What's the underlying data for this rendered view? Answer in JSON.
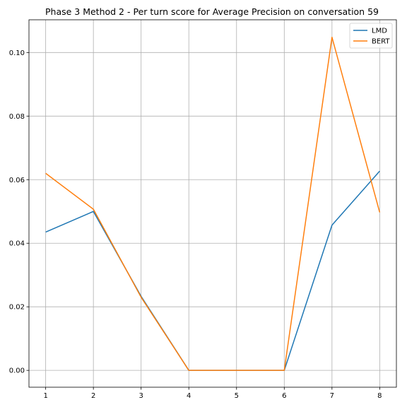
{
  "chart_data": {
    "type": "line",
    "title": "Phase 3 Method 2 - Per turn score for Average Precision on conversation 59",
    "xlabel": "",
    "ylabel": "",
    "x": [
      1,
      2,
      3,
      4,
      5,
      6,
      7,
      8
    ],
    "xlim": [
      0.65,
      8.35
    ],
    "ylim": [
      -0.0053,
      0.1103
    ],
    "x_ticks": [
      1,
      2,
      3,
      4,
      5,
      6,
      7,
      8
    ],
    "x_tick_labels": [
      "1",
      "2",
      "3",
      "4",
      "5",
      "6",
      "7",
      "8"
    ],
    "y_ticks": [
      0.0,
      0.02,
      0.04,
      0.06,
      0.08,
      0.1
    ],
    "y_tick_labels": [
      "0.00",
      "0.02",
      "0.04",
      "0.06",
      "0.08",
      "0.10"
    ],
    "grid": true,
    "legend_position": "top-right",
    "series": [
      {
        "name": "LMD",
        "color": "#1f77b4",
        "values": [
          0.0435,
          0.05,
          0.0233,
          0.0,
          0.0,
          0.0,
          0.0457,
          0.0627
        ]
      },
      {
        "name": "BERT",
        "color": "#ff7f0e",
        "values": [
          0.062,
          0.0507,
          0.023,
          0.0,
          0.0,
          0.0,
          0.1048,
          0.0497
        ]
      }
    ]
  }
}
